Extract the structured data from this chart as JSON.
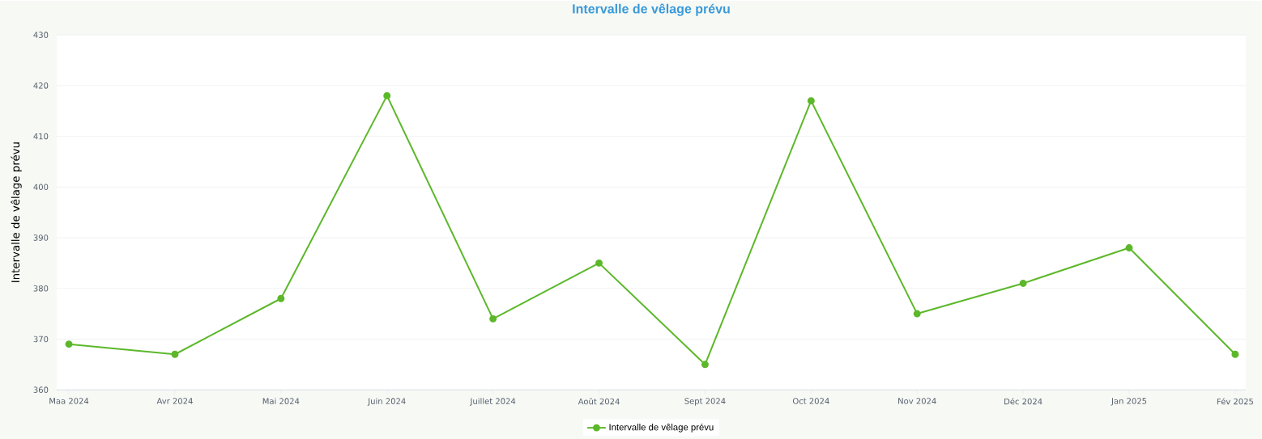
{
  "chart_data": {
    "type": "line",
    "title": "Intervalle de vêlage prévu",
    "ylabel": "Intervalle de vêlage prévu",
    "categories": [
      "Maa 2024",
      "Avr 2024",
      "Mai 2024",
      "Juin 2024",
      "Juillet 2024",
      "Août 2024",
      "Sept 2024",
      "Oct 2024",
      "Nov 2024",
      "Déc 2024",
      "Jan 2025",
      "Fév 2025"
    ],
    "series": [
      {
        "name": "Intervalle de vêlage prévu",
        "color": "#5cb82a",
        "values": [
          369,
          367,
          378,
          418,
          374,
          385,
          365,
          417,
          375,
          381,
          388,
          367
        ]
      }
    ],
    "ylim": [
      360,
      430
    ],
    "yticks": [
      360,
      370,
      380,
      390,
      400,
      410,
      420,
      430
    ],
    "grid": "y",
    "legend": "bottom",
    "marker": "circle"
  }
}
